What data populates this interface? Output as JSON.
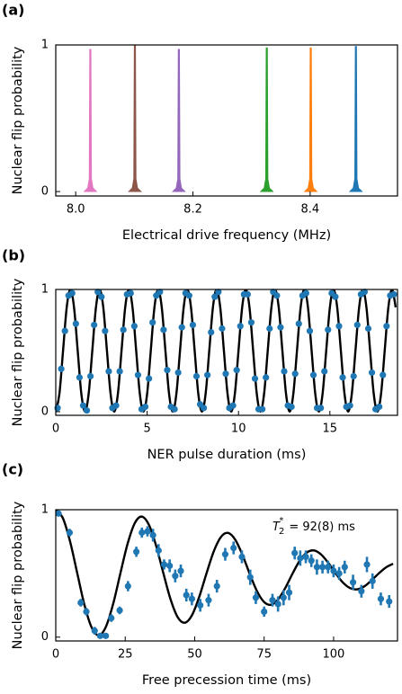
{
  "chart_data": [
    {
      "type": "spectrum",
      "panel_label": "(a)",
      "xlabel": "Electrical drive frequency (MHz)",
      "ylabel": "Nuclear flip probability",
      "xlim": [
        7.966,
        8.549
      ],
      "ylim": [
        -0.03,
        1
      ],
      "xticks": [
        {
          "value": 8.0,
          "label": "8.0"
        },
        8.2,
        8.4
      ],
      "yticks": [
        0,
        1
      ],
      "peaks": [
        {
          "x": 8.025,
          "y": 0.97,
          "color": "#e377c2"
        },
        {
          "x": 8.101,
          "y": 1.0,
          "color": "#8c564b"
        },
        {
          "x": 8.176,
          "y": 0.97,
          "color": "#9467bd"
        },
        {
          "x": 8.326,
          "y": 0.98,
          "color": "#2ca02c"
        },
        {
          "x": 8.401,
          "y": 0.98,
          "color": "#ff7f0e"
        },
        {
          "x": 8.478,
          "y": 0.99,
          "color": "#1f77b4"
        }
      ]
    },
    {
      "type": "oscillation",
      "panel_label": "(b)",
      "xlabel": "NER pulse duration (ms)",
      "ylabel": "Nuclear flip probability",
      "xlim": [
        0,
        18.7
      ],
      "ylim": [
        -0.03,
        1
      ],
      "xticks": [
        0,
        5,
        10,
        15
      ],
      "yticks": [
        0,
        1
      ],
      "fit": {
        "color": "#000000",
        "x": [
          0,
          0.2,
          0.4,
          0.6,
          0.8,
          1,
          1.2,
          1.4,
          1.6,
          1.8,
          2,
          2.2,
          2.4,
          2.6,
          2.8,
          3,
          3.2,
          3.4,
          3.6,
          3.8,
          4,
          4.2,
          4.4,
          4.6,
          4.8,
          5,
          5.2,
          5.4,
          5.6,
          5.8,
          6,
          6.2,
          6.4,
          6.6,
          6.8,
          7,
          7.2,
          7.4,
          7.6,
          7.8,
          8,
          8.2,
          8.4,
          8.6,
          8.8,
          9,
          9.2,
          9.4,
          9.6,
          9.8,
          10,
          10.2,
          10.4,
          10.6,
          10.8,
          11,
          11.2,
          11.4,
          11.6,
          11.8,
          12,
          12.2,
          12.4,
          12.6,
          12.8,
          13,
          13.2,
          13.4,
          13.6,
          13.8,
          14,
          14.2,
          14.4,
          14.6,
          14.8,
          15,
          15.2,
          15.4,
          15.6,
          15.8,
          16,
          16.2,
          16.4,
          16.6,
          16.8,
          17,
          17.2,
          17.4,
          17.6,
          17.8,
          18,
          18.2,
          18.4,
          18.6
        ],
        "values": [
          0,
          0.146,
          0.5,
          0.854,
          1,
          0.854,
          0.5,
          0.146,
          0,
          0.146,
          0.5,
          0.854,
          1,
          0.854,
          0.5,
          0.146,
          0,
          0.146,
          0.5,
          0.854,
          1,
          0.854,
          0.5,
          0.146,
          0,
          0.146,
          0.5,
          0.854,
          1,
          0.854,
          0.5,
          0.146,
          0,
          0.146,
          0.5,
          0.854,
          1,
          0.854,
          0.5,
          0.146,
          0,
          0.146,
          0.5,
          0.854,
          1,
          0.854,
          0.5,
          0.146,
          0,
          0.146,
          0.5,
          0.854,
          1,
          0.854,
          0.5,
          0.146,
          0,
          0.146,
          0.5,
          0.854,
          1,
          0.854,
          0.5,
          0.146,
          0,
          0.146,
          0.5,
          0.854,
          1,
          0.854,
          0.5,
          0.146,
          0,
          0.146,
          0.5,
          0.854,
          1,
          0.854,
          0.5,
          0.146,
          0,
          0.146,
          0.5,
          0.854,
          1,
          0.854,
          0.5,
          0.146,
          0,
          0.146,
          0.5,
          0.854,
          1,
          0.854
        ]
      },
      "points": {
        "color": "#1f77b4",
        "x": [
          0.1,
          0.3,
          0.5,
          0.7,
          0.9,
          1.1,
          1.3,
          1.5,
          1.7,
          1.9,
          2.1,
          2.3,
          2.5,
          2.7,
          2.9,
          3.1,
          3.3,
          3.5,
          3.7,
          3.9,
          4.1,
          4.3,
          4.5,
          4.7,
          4.9,
          5.1,
          5.3,
          5.5,
          5.7,
          5.9,
          6.1,
          6.3,
          6.5,
          6.7,
          6.9,
          7.1,
          7.3,
          7.5,
          7.7,
          7.9,
          8.1,
          8.3,
          8.5,
          8.7,
          8.9,
          9.1,
          9.3,
          9.5,
          9.7,
          9.9,
          10.1,
          10.3,
          10.5,
          10.7,
          10.9,
          11.1,
          11.3,
          11.5,
          11.7,
          11.9,
          12.1,
          12.3,
          12.5,
          12.7,
          12.9,
          13.1,
          13.3,
          13.5,
          13.7,
          13.9,
          14.1,
          14.3,
          14.5,
          14.7,
          14.9,
          15.1,
          15.3,
          15.5,
          15.7,
          15.9,
          16.1,
          16.3,
          16.5,
          16.7,
          16.9,
          17.1,
          17.3,
          17.5,
          17.7,
          17.9,
          18.1,
          18.3,
          18.5
        ],
        "values": [
          0.03,
          0.35,
          0.66,
          0.95,
          0.97,
          0.72,
          0.28,
          0.05,
          0.01,
          0.29,
          0.71,
          0.98,
          0.94,
          0.66,
          0.33,
          0.03,
          0.05,
          0.33,
          0.67,
          0.96,
          0.97,
          0.7,
          0.3,
          0.02,
          0.04,
          0.27,
          0.73,
          0.95,
          0.98,
          0.67,
          0.34,
          0.04,
          0.02,
          0.32,
          0.69,
          0.97,
          0.95,
          0.71,
          0.29,
          0.06,
          0.03,
          0.3,
          0.65,
          0.94,
          0.98,
          0.68,
          0.31,
          0.03,
          0.05,
          0.34,
          0.7,
          0.96,
          0.96,
          0.73,
          0.27,
          0.02,
          0.02,
          0.28,
          0.68,
          0.98,
          0.95,
          0.69,
          0.33,
          0.05,
          0.04,
          0.31,
          0.72,
          0.95,
          0.97,
          0.66,
          0.3,
          0.03,
          0.03,
          0.33,
          0.67,
          0.97,
          0.94,
          0.7,
          0.28,
          0.04,
          0.05,
          0.29,
          0.71,
          0.96,
          0.98,
          0.68,
          0.32,
          0.02,
          0.04,
          0.3,
          0.7,
          0.95,
          0.96
        ]
      }
    },
    {
      "type": "decay",
      "panel_label": "(c)",
      "xlabel": "Free precession time (ms)",
      "ylabel": "Nuclear flip probability",
      "xlim": [
        0,
        123
      ],
      "ylim": [
        -0.03,
        1
      ],
      "xticks": [
        0,
        25,
        50,
        75,
        100
      ],
      "yticks": [
        0,
        1
      ],
      "annotation": {
        "symbol": "T",
        "subscript": "2",
        "superscript": "*",
        "text": "= 92(8) ms"
      },
      "fit": {
        "color": "#000000",
        "x": [
          0,
          2.58,
          5.17,
          7.75,
          10.33,
          12.92,
          15.5,
          18.08,
          20.67,
          23.25,
          25.83,
          28.42,
          31,
          33.58,
          36.17,
          38.75,
          41.33,
          43.92,
          46.5,
          49.08,
          51.67,
          54.25,
          56.83,
          59.42,
          62,
          64.58,
          67.17,
          69.75,
          72.33,
          74.92,
          77.5,
          80.08,
          82.67,
          85.25,
          87.83,
          90.42,
          93,
          95.58,
          98.17,
          100.75,
          103.33,
          105.92,
          108.5,
          111.08,
          113.67,
          116.25,
          118.83,
          121.42
        ],
        "values": [
          1.0,
          0.933,
          0.749,
          0.5,
          0.253,
          0.076,
          0.014,
          0.083,
          0.262,
          0.5,
          0.731,
          0.894,
          0.946,
          0.879,
          0.714,
          0.5,
          0.296,
          0.155,
          0.113,
          0.174,
          0.318,
          0.5,
          0.671,
          0.785,
          0.818,
          0.765,
          0.647,
          0.5,
          0.365,
          0.277,
          0.254,
          0.297,
          0.388,
          0.5,
          0.601,
          0.665,
          0.68,
          0.647,
          0.58,
          0.5,
          0.429,
          0.385,
          0.375,
          0.399,
          0.446,
          0.5,
          0.547,
          0.576
        ]
      },
      "points": {
        "color": "#1f77b4",
        "x": [
          1,
          5,
          9,
          11,
          14,
          16,
          18,
          20,
          23,
          26,
          29,
          31,
          33,
          35,
          37,
          39,
          41,
          43,
          45,
          47,
          49,
          52,
          55,
          58,
          61,
          64,
          67,
          70,
          72,
          75,
          78,
          80,
          82,
          84,
          86,
          88,
          90,
          92,
          94,
          96,
          98,
          100,
          102,
          104,
          107,
          110,
          112,
          114,
          117,
          120
        ],
        "values": [
          0.97,
          0.82,
          0.27,
          0.2,
          0.05,
          0.01,
          0.01,
          0.15,
          0.21,
          0.4,
          0.67,
          0.82,
          0.83,
          0.8,
          0.68,
          0.57,
          0.56,
          0.48,
          0.52,
          0.33,
          0.3,
          0.25,
          0.29,
          0.4,
          0.65,
          0.7,
          0.63,
          0.47,
          0.31,
          0.2,
          0.29,
          0.26,
          0.31,
          0.35,
          0.66,
          0.62,
          0.63,
          0.6,
          0.55,
          0.55,
          0.55,
          0.52,
          0.5,
          0.55,
          0.43,
          0.36,
          0.57,
          0.44,
          0.3,
          0.28
        ],
        "errors": [
          0.02,
          0.03,
          0.03,
          0.03,
          0.03,
          0.02,
          0.02,
          0.03,
          0.03,
          0.04,
          0.04,
          0.04,
          0.04,
          0.05,
          0.05,
          0.04,
          0.05,
          0.05,
          0.05,
          0.05,
          0.05,
          0.05,
          0.05,
          0.05,
          0.05,
          0.05,
          0.05,
          0.06,
          0.05,
          0.04,
          0.05,
          0.06,
          0.06,
          0.06,
          0.05,
          0.06,
          0.05,
          0.05,
          0.06,
          0.05,
          0.05,
          0.05,
          0.05,
          0.05,
          0.06,
          0.05,
          0.06,
          0.06,
          0.05,
          0.05
        ]
      }
    }
  ]
}
